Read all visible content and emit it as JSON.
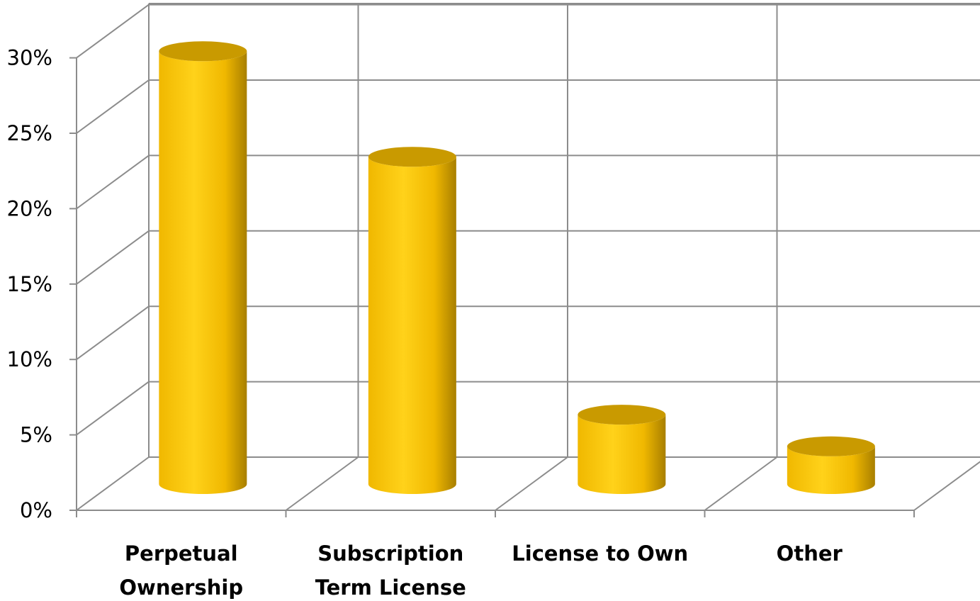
{
  "chart_data": {
    "type": "bar",
    "style": "3d-cylinder",
    "categories": [
      [
        "Perpetual",
        "Ownership"
      ],
      [
        "Subscription",
        "Term License"
      ],
      [
        "License to Own"
      ],
      [
        "Other"
      ]
    ],
    "values": [
      28.7,
      21.7,
      4.6,
      2.5
    ],
    "ylim": [
      0,
      30
    ],
    "y_ticks": [
      "0%",
      "5%",
      "10%",
      "15%",
      "20%",
      "25%",
      "30%"
    ],
    "y_tick_values": [
      0,
      5,
      10,
      15,
      20,
      25,
      30
    ],
    "grid": true,
    "legend": "none",
    "colors": {
      "bar_light": "#ffd21a",
      "bar_mid": "#f0b800",
      "bar_dark": "#a87f00",
      "bar_top": "#c99a00",
      "grid": "#8c8c8c"
    }
  }
}
